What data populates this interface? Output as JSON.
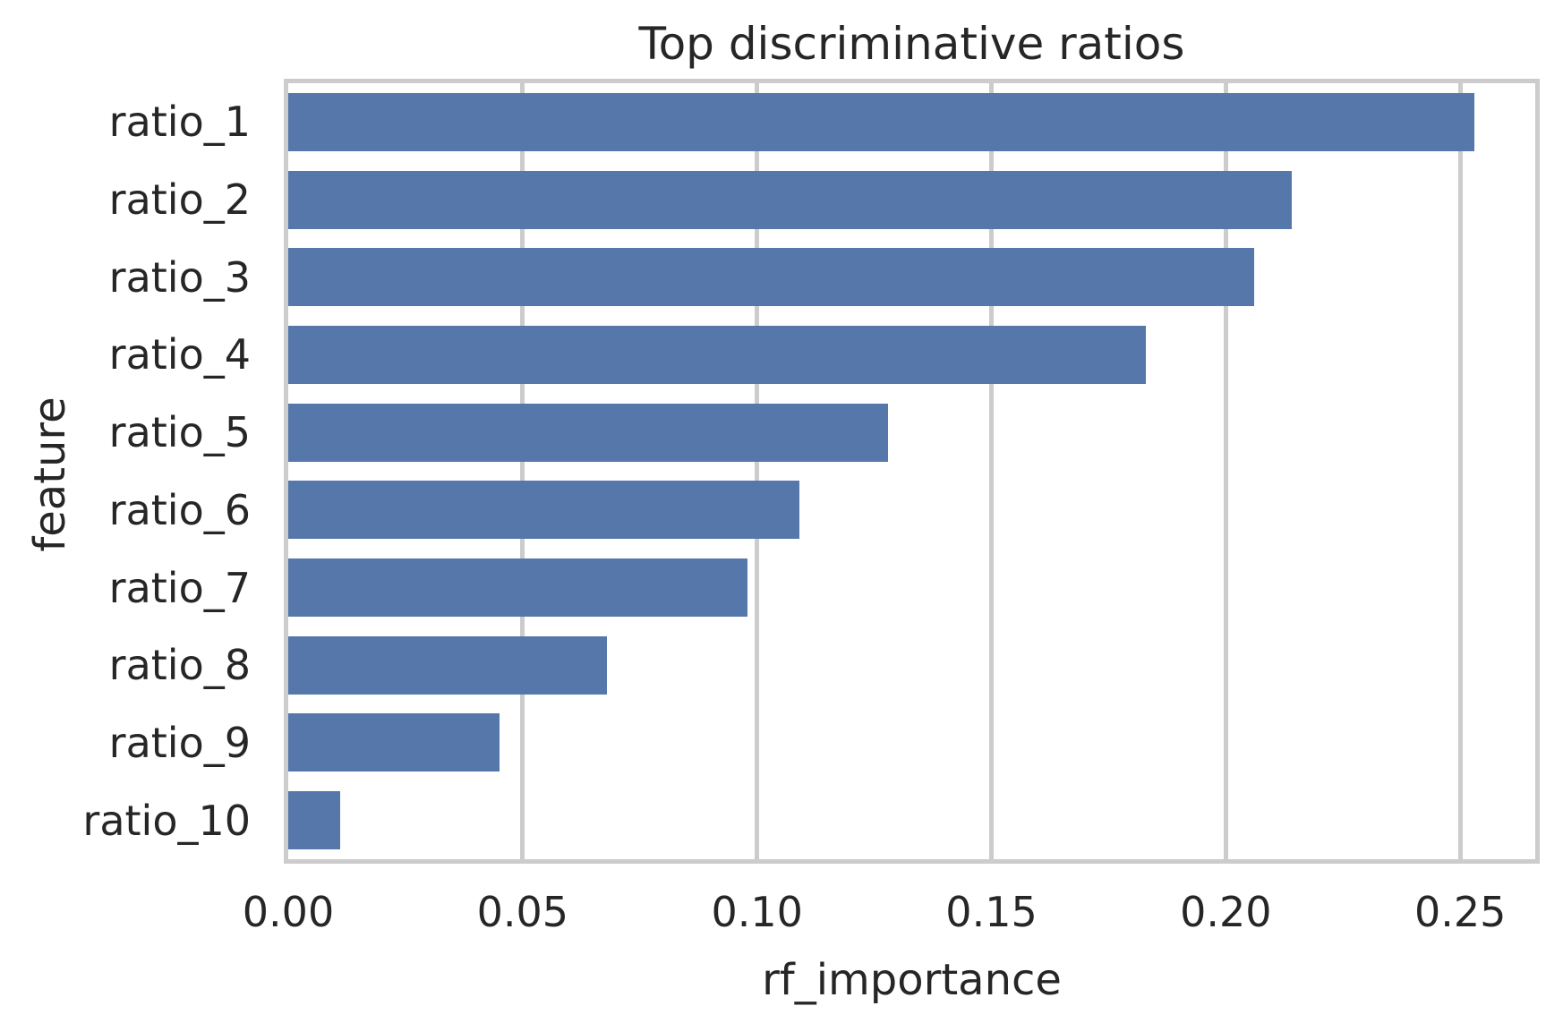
{
  "chart_data": {
    "type": "bar",
    "orientation": "horizontal",
    "title": "Top discriminative ratios",
    "xlabel": "rf_importance",
    "ylabel": "feature",
    "categories": [
      "ratio_1",
      "ratio_2",
      "ratio_3",
      "ratio_4",
      "ratio_5",
      "ratio_6",
      "ratio_7",
      "ratio_8",
      "ratio_9",
      "ratio_10"
    ],
    "values": [
      0.253,
      0.214,
      0.206,
      0.183,
      0.128,
      0.109,
      0.098,
      0.068,
      0.045,
      0.011
    ],
    "xlim": [
      0,
      0.266
    ],
    "x_ticks": [
      0.0,
      0.05,
      0.1,
      0.15,
      0.2,
      0.25
    ],
    "x_tick_labels": [
      "0.00",
      "0.05",
      "0.10",
      "0.15",
      "0.20",
      "0.25"
    ],
    "grid": true,
    "legend": false,
    "bar_color": "#5577aa",
    "grid_color": "#cccccc",
    "text_color": "#262626"
  }
}
